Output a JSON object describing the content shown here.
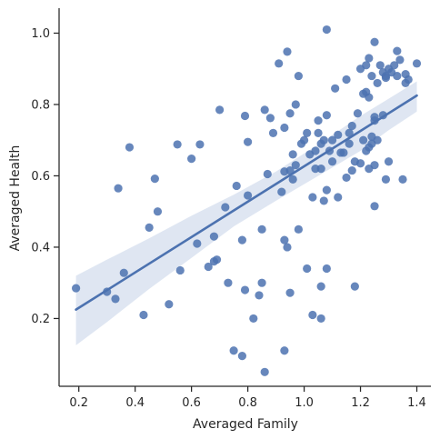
{
  "chart_data": {
    "type": "scatter",
    "title": "",
    "xlabel": "Averaged Family",
    "ylabel": "Averaged Health",
    "xlim": [
      0.13,
      1.45
    ],
    "ylim": [
      0.01,
      1.07
    ],
    "x_ticks": [
      0.2,
      0.4,
      0.6,
      0.8,
      1.0,
      1.2,
      1.4
    ],
    "y_ticks": [
      0.2,
      0.4,
      0.6,
      0.8,
      1.0
    ],
    "x_tick_labels": [
      "0.2",
      "0.4",
      "0.6",
      "0.8",
      "1.0",
      "1.2",
      "1.4"
    ],
    "y_tick_labels": [
      "0.2",
      "0.4",
      "0.6",
      "0.8",
      "1.0"
    ],
    "grid": false,
    "colors": {
      "points": "#4c72b0",
      "line": "#4c72b0",
      "band": "#c9d5ea",
      "axis": "#262626"
    },
    "regression": {
      "x": [
        0.19,
        1.4
      ],
      "y": [
        0.225,
        0.825
      ],
      "ci_x": [
        0.19,
        0.3,
        0.45,
        0.6,
        0.75,
        0.9,
        1.05,
        1.2,
        1.3,
        1.4
      ],
      "ci_upper": [
        0.32,
        0.365,
        0.425,
        0.488,
        0.547,
        0.612,
        0.688,
        0.768,
        0.816,
        0.865
      ],
      "ci_lower": [
        0.125,
        0.19,
        0.283,
        0.37,
        0.458,
        0.53,
        0.6,
        0.67,
        0.728,
        0.78
      ]
    },
    "points": [
      [
        0.19,
        0.285
      ],
      [
        0.3,
        0.275
      ],
      [
        0.33,
        0.255
      ],
      [
        0.34,
        0.565
      ],
      [
        0.36,
        0.328
      ],
      [
        0.38,
        0.68
      ],
      [
        0.43,
        0.21
      ],
      [
        0.45,
        0.455
      ],
      [
        0.47,
        0.592
      ],
      [
        0.48,
        0.5
      ],
      [
        0.52,
        0.24
      ],
      [
        0.55,
        0.688
      ],
      [
        0.56,
        0.335
      ],
      [
        0.6,
        0.648
      ],
      [
        0.62,
        0.41
      ],
      [
        0.63,
        0.688
      ],
      [
        0.66,
        0.345
      ],
      [
        0.68,
        0.43
      ],
      [
        0.68,
        0.36
      ],
      [
        0.69,
        0.365
      ],
      [
        0.7,
        0.785
      ],
      [
        0.72,
        0.512
      ],
      [
        0.73,
        0.3
      ],
      [
        0.75,
        0.11
      ],
      [
        0.76,
        0.572
      ],
      [
        0.78,
        0.42
      ],
      [
        0.78,
        0.095
      ],
      [
        0.79,
        0.28
      ],
      [
        0.79,
        0.768
      ],
      [
        0.8,
        0.545
      ],
      [
        0.8,
        0.695
      ],
      [
        0.82,
        0.2
      ],
      [
        0.84,
        0.265
      ],
      [
        0.85,
        0.45
      ],
      [
        0.85,
        0.3
      ],
      [
        0.86,
        0.05
      ],
      [
        0.86,
        0.785
      ],
      [
        0.87,
        0.605
      ],
      [
        0.88,
        0.762
      ],
      [
        0.89,
        0.72
      ],
      [
        0.91,
        0.915
      ],
      [
        0.92,
        0.555
      ],
      [
        0.93,
        0.735
      ],
      [
        0.93,
        0.612
      ],
      [
        0.93,
        0.11
      ],
      [
        0.93,
        0.42
      ],
      [
        0.94,
        0.948
      ],
      [
        0.94,
        0.4
      ],
      [
        0.95,
        0.272
      ],
      [
        0.95,
        0.615
      ],
      [
        0.95,
        0.775
      ],
      [
        0.96,
        0.59
      ],
      [
        0.96,
        0.66
      ],
      [
        0.97,
        0.8
      ],
      [
        0.97,
        0.63
      ],
      [
        0.98,
        0.88
      ],
      [
        0.98,
        0.45
      ],
      [
        0.99,
        0.69
      ],
      [
        1.0,
        0.7
      ],
      [
        1.01,
        0.34
      ],
      [
        1.01,
        0.72
      ],
      [
        1.02,
        0.66
      ],
      [
        1.03,
        0.54
      ],
      [
        1.03,
        0.21
      ],
      [
        1.04,
        0.67
      ],
      [
        1.04,
        0.62
      ],
      [
        1.05,
        0.72
      ],
      [
        1.05,
        0.755
      ],
      [
        1.06,
        0.2
      ],
      [
        1.06,
        0.69
      ],
      [
        1.06,
        0.29
      ],
      [
        1.06,
        0.62
      ],
      [
        1.07,
        0.53
      ],
      [
        1.07,
        0.7
      ],
      [
        1.08,
        1.01
      ],
      [
        1.08,
        0.34
      ],
      [
        1.08,
        0.56
      ],
      [
        1.08,
        0.77
      ],
      [
        1.09,
        0.67
      ],
      [
        1.1,
        0.64
      ],
      [
        1.1,
        0.7
      ],
      [
        1.11,
        0.845
      ],
      [
        1.12,
        0.54
      ],
      [
        1.12,
        0.715
      ],
      [
        1.13,
        0.665
      ],
      [
        1.14,
        0.665
      ],
      [
        1.15,
        0.595
      ],
      [
        1.15,
        0.87
      ],
      [
        1.16,
        0.69
      ],
      [
        1.16,
        0.72
      ],
      [
        1.17,
        0.74
      ],
      [
        1.17,
        0.615
      ],
      [
        1.18,
        0.29
      ],
      [
        1.18,
        0.64
      ],
      [
        1.19,
        0.775
      ],
      [
        1.2,
        0.635
      ],
      [
        1.2,
        0.9
      ],
      [
        1.21,
        0.7
      ],
      [
        1.21,
        0.83
      ],
      [
        1.22,
        0.67
      ],
      [
        1.22,
        0.835
      ],
      [
        1.22,
        0.91
      ],
      [
        1.23,
        0.68
      ],
      [
        1.23,
        0.62
      ],
      [
        1.23,
        0.93
      ],
      [
        1.23,
        0.82
      ],
      [
        1.24,
        0.71
      ],
      [
        1.24,
        0.69
      ],
      [
        1.24,
        0.88
      ],
      [
        1.25,
        0.755
      ],
      [
        1.25,
        0.515
      ],
      [
        1.25,
        0.63
      ],
      [
        1.25,
        0.975
      ],
      [
        1.25,
        0.765
      ],
      [
        1.26,
        0.7
      ],
      [
        1.26,
        0.86
      ],
      [
        1.27,
        0.91
      ],
      [
        1.28,
        0.89
      ],
      [
        1.28,
        0.77
      ],
      [
        1.29,
        0.59
      ],
      [
        1.29,
        0.88
      ],
      [
        1.29,
        0.875
      ],
      [
        1.3,
        0.64
      ],
      [
        1.3,
        0.9
      ],
      [
        1.31,
        0.89
      ],
      [
        1.32,
        0.91
      ],
      [
        1.33,
        0.95
      ],
      [
        1.33,
        0.88
      ],
      [
        1.34,
        0.925
      ],
      [
        1.35,
        0.59
      ],
      [
        1.36,
        0.885
      ],
      [
        1.36,
        0.86
      ],
      [
        1.37,
        0.87
      ],
      [
        1.4,
        0.915
      ]
    ]
  }
}
